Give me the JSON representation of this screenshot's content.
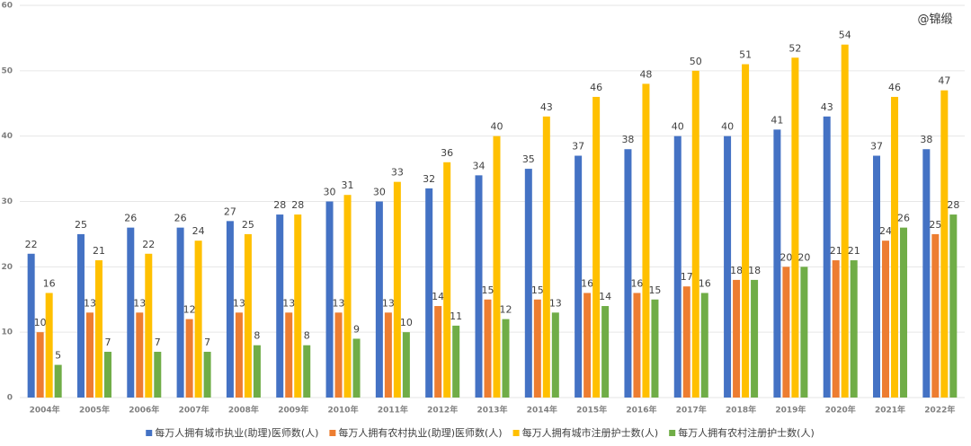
{
  "chart_data": {
    "type": "bar",
    "watermark": "@锦缎",
    "categories": [
      "2004年",
      "2005年",
      "2006年",
      "2007年",
      "2008年",
      "2009年",
      "2010年",
      "2011年",
      "2012年",
      "2013年",
      "2014年",
      "2015年",
      "2016年",
      "2017年",
      "2018年",
      "2019年",
      "2020年",
      "2021年",
      "2022年"
    ],
    "series": [
      {
        "name": "每万人拥有城市执业(助理)医师数(人)",
        "color": "#4472c4",
        "values": [
          22,
          25,
          26,
          26,
          27,
          28,
          30,
          30,
          32,
          34,
          35,
          37,
          38,
          40,
          40,
          41,
          43,
          37,
          38
        ]
      },
      {
        "name": "每万人拥有农村执业(助理)医师数(人)",
        "color": "#ed7d31",
        "values": [
          10,
          13,
          13,
          12,
          13,
          13,
          13,
          13,
          14,
          15,
          15,
          16,
          16,
          17,
          18,
          20,
          21,
          24,
          25
        ]
      },
      {
        "name": "每万人拥有城市注册护士数(人)",
        "color": "#ffc000",
        "values": [
          16,
          21,
          22,
          24,
          25,
          28,
          31,
          33,
          36,
          40,
          43,
          46,
          48,
          50,
          51,
          52,
          54,
          46,
          47
        ]
      },
      {
        "name": "每万人拥有农村注册护士数(人)",
        "color": "#70ad47",
        "values": [
          5,
          7,
          7,
          7,
          8,
          8,
          9,
          10,
          11,
          12,
          13,
          14,
          15,
          16,
          18,
          20,
          21,
          26,
          28
        ]
      }
    ],
    "ylim": [
      0,
      60
    ],
    "yticks": [
      0,
      10,
      20,
      30,
      40,
      50,
      60
    ],
    "grid": true
  }
}
